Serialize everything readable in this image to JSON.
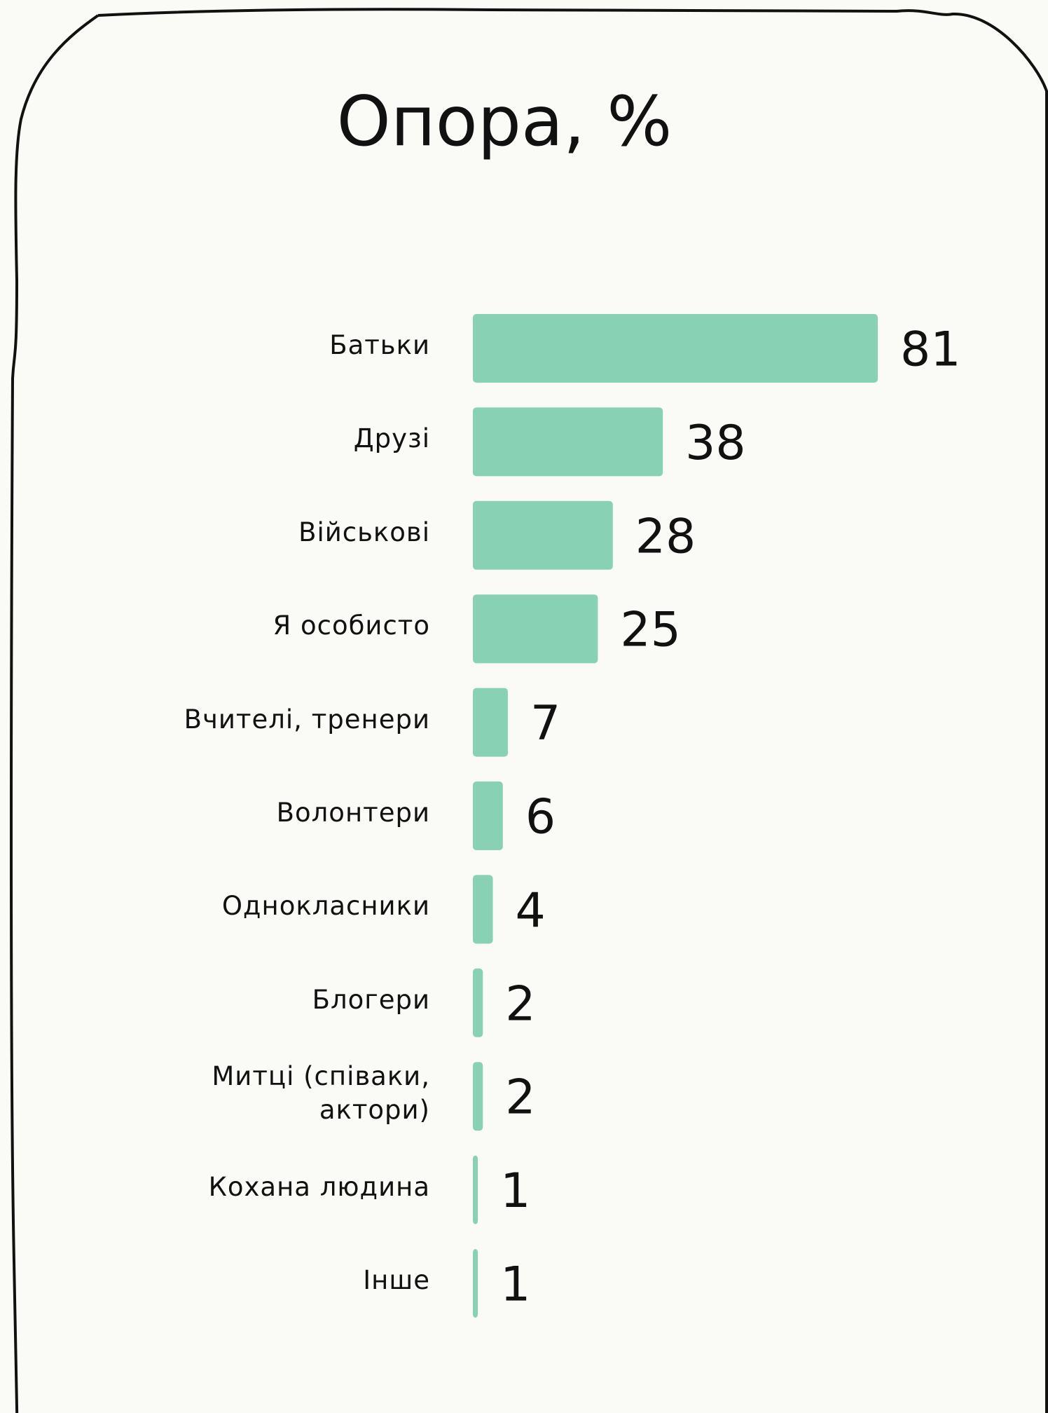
{
  "chart_data": {
    "type": "hbar",
    "title": "Опора, %",
    "categories": [
      "Батьки",
      "Друзі",
      "Військові",
      "Я особисто",
      "Вчителі, тренери",
      "Волонтери",
      "Однокласники",
      "Блогери",
      "Митці (співаки, актори)",
      "Кохана людина",
      "Інше"
    ],
    "values": [
      81,
      38,
      28,
      25,
      7,
      6,
      4,
      2,
      2,
      1,
      1
    ],
    "color": "#88d1b5"
  }
}
